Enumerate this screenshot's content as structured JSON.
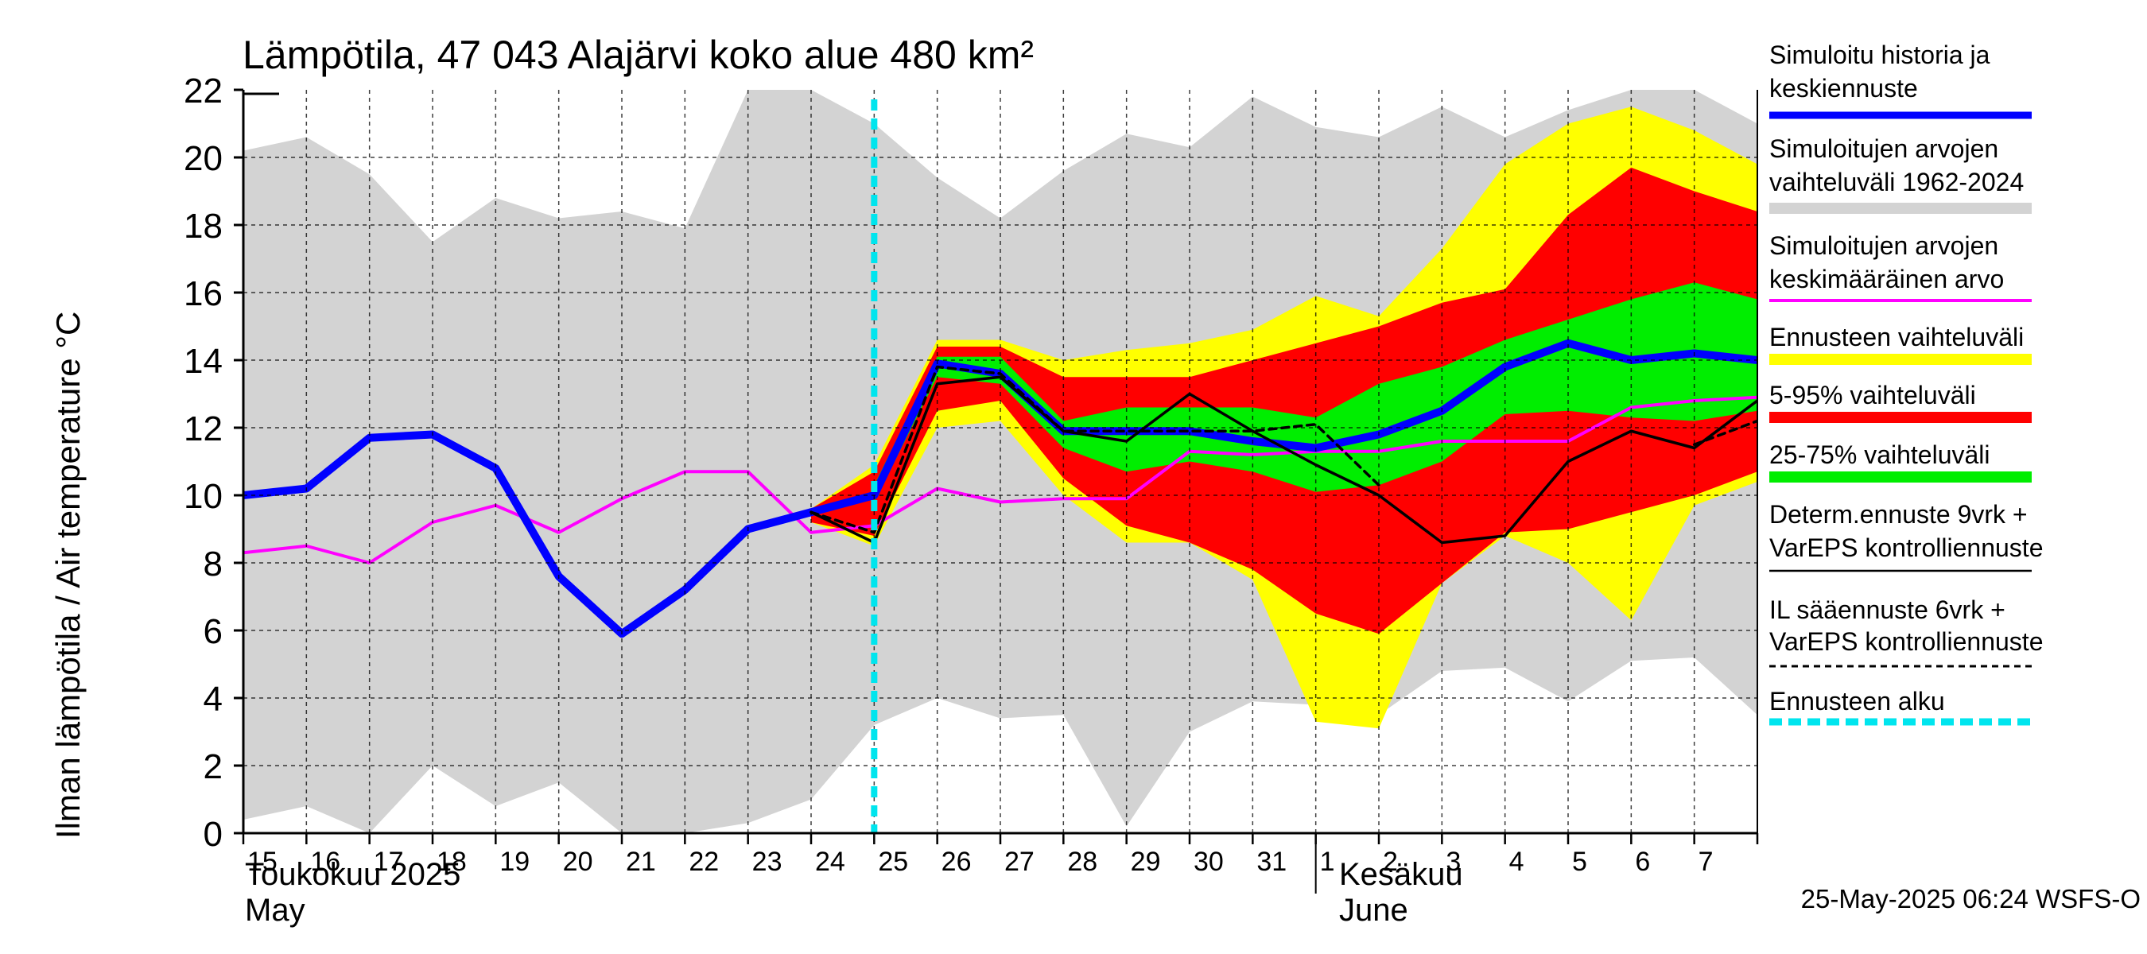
{
  "chart_data": {
    "type": "area",
    "title": "Lämpötila, 47 043 Alajärvi koko alue 480 km²",
    "ylabel": "Ilman lämpötila / Air temperature   °C",
    "ylim": [
      0,
      22
    ],
    "yticks": [
      0,
      2,
      4,
      6,
      8,
      10,
      12,
      14,
      16,
      18,
      20,
      22
    ],
    "xlim": [
      0,
      24
    ],
    "day_labels": [
      "15",
      "16",
      "17",
      "18",
      "19",
      "20",
      "21",
      "22",
      "23",
      "24",
      "25",
      "26",
      "27",
      "28",
      "29",
      "30",
      "31",
      "1",
      "2",
      "3",
      "4",
      "5",
      "6",
      "7"
    ],
    "month_labels": [
      {
        "line1": "Toukokuu  2025",
        "line2": "May"
      },
      {
        "line1": "Kesäkuu",
        "line2": "June"
      }
    ],
    "forecast_start": 10,
    "series": [
      {
        "name": "Simuloitujen arvojen vaihteluväli 1962-2024",
        "color": "#d3d3d3",
        "x": [
          0,
          1,
          2,
          3,
          4,
          5,
          6,
          7,
          8,
          9,
          10,
          11,
          12,
          13,
          14,
          15,
          16,
          17,
          18,
          19,
          20,
          21,
          22,
          23,
          24
        ],
        "lower": [
          0.4,
          0.8,
          0.0,
          2.0,
          0.8,
          1.5,
          0.0,
          0.0,
          0.3,
          1.0,
          3.2,
          4.0,
          3.4,
          3.5,
          0.2,
          3.0,
          3.9,
          3.8,
          3.5,
          4.8,
          4.9,
          3.9,
          5.1,
          5.2,
          3.5
        ],
        "upper": [
          20.2,
          20.6,
          19.5,
          17.5,
          18.8,
          18.2,
          18.4,
          17.9,
          22.0,
          22.0,
          21.0,
          19.4,
          18.2,
          19.6,
          20.7,
          20.3,
          21.8,
          20.9,
          20.6,
          21.5,
          20.6,
          21.4,
          22.0,
          22.0,
          21.0
        ]
      },
      {
        "name": "Ennusteen vaihteluväli",
        "color": "#ffff00",
        "x": [
          9,
          10,
          11,
          12,
          13,
          14,
          15,
          16,
          17,
          18,
          19,
          20,
          21,
          22,
          23,
          24
        ],
        "lower": [
          9.2,
          8.5,
          12.0,
          12.2,
          10.0,
          8.6,
          8.6,
          7.5,
          3.3,
          3.1,
          7.4,
          8.8,
          8.0,
          6.3,
          9.7,
          10.4
        ],
        "upper": [
          9.6,
          10.9,
          14.6,
          14.6,
          14.0,
          14.3,
          14.5,
          14.9,
          15.9,
          15.3,
          17.3,
          19.8,
          21.0,
          21.5,
          20.8,
          19.8
        ]
      },
      {
        "name": "5-95% vaihteluväli",
        "color": "#ff0000",
        "x": [
          9,
          10,
          11,
          12,
          13,
          14,
          15,
          16,
          17,
          18,
          19,
          20,
          21,
          22,
          23,
          24
        ],
        "lower": [
          9.2,
          8.8,
          12.5,
          12.8,
          10.5,
          9.1,
          8.6,
          7.8,
          6.5,
          5.9,
          7.4,
          8.9,
          9.0,
          9.5,
          10.0,
          10.7
        ],
        "upper": [
          9.6,
          10.7,
          14.4,
          14.4,
          13.5,
          13.5,
          13.5,
          14.0,
          14.5,
          15.0,
          15.7,
          16.1,
          18.3,
          19.7,
          19.0,
          18.4
        ]
      },
      {
        "name": "25-75% vaihteluväli",
        "color": "#00ee00",
        "x": [
          10,
          11,
          12,
          13,
          14,
          15,
          16,
          17,
          18,
          19,
          20,
          21,
          22,
          23,
          24
        ],
        "lower": [
          9.8,
          13.5,
          13.3,
          11.4,
          10.7,
          11.0,
          10.7,
          10.1,
          10.3,
          11.0,
          12.4,
          12.5,
          12.3,
          12.2,
          12.5
        ],
        "upper": [
          10.3,
          14.1,
          14.1,
          12.2,
          12.6,
          12.6,
          12.6,
          12.3,
          13.3,
          13.8,
          14.6,
          15.2,
          15.8,
          16.3,
          15.8
        ]
      },
      {
        "name": "Simuloitujen arvojen keskimääräinen arvo",
        "color": "#ff00ff",
        "x": [
          0,
          1,
          2,
          3,
          4,
          5,
          6,
          7,
          8,
          9,
          10,
          11,
          12,
          13,
          14,
          15,
          16,
          17,
          18,
          19,
          20,
          21,
          22,
          23,
          24
        ],
        "y": [
          8.3,
          8.5,
          8.0,
          9.2,
          9.7,
          8.9,
          9.9,
          10.7,
          10.7,
          8.9,
          9.1,
          10.2,
          9.8,
          9.9,
          9.9,
          11.3,
          11.2,
          11.3,
          11.3,
          11.6,
          11.6,
          11.6,
          12.6,
          12.8,
          12.9
        ]
      },
      {
        "name": "Simuloitu historia ja keskiennuste",
        "color": "#0000ff",
        "x": [
          0,
          1,
          2,
          3,
          4,
          5,
          6,
          7,
          8,
          9,
          10,
          11,
          12,
          13,
          14,
          15,
          16,
          17,
          18,
          19,
          20,
          21,
          22,
          23,
          24
        ],
        "y": [
          10.0,
          10.2,
          11.7,
          11.8,
          10.8,
          7.6,
          5.9,
          7.2,
          9.0,
          9.5,
          10.0,
          13.9,
          13.6,
          11.9,
          11.9,
          11.9,
          11.6,
          11.4,
          11.8,
          12.5,
          13.8,
          14.5,
          14.0,
          14.2,
          14.0
        ]
      },
      {
        "name": "Determ.ennuste 9vrk + VarEPS kontrolliennuste",
        "color": "#000000",
        "x": [
          9,
          10,
          11,
          12,
          13,
          14,
          15,
          16,
          17,
          18,
          19,
          20,
          21,
          22,
          23,
          24
        ],
        "y": [
          9.5,
          8.6,
          13.3,
          13.5,
          11.9,
          11.6,
          13.0,
          11.9,
          10.9,
          10.0,
          8.6,
          8.8,
          11.0,
          11.9,
          11.4,
          12.8
        ]
      },
      {
        "name": "IL sääennuste 6vrk + VarEPS kontrolliennuste",
        "color": "#000000",
        "x": [
          9,
          10,
          11,
          12,
          13,
          14,
          15,
          16,
          17,
          18,
          19,
          20,
          21,
          22,
          23,
          24
        ],
        "y": [
          9.5,
          8.9,
          13.8,
          13.6,
          11.9,
          11.9,
          11.9,
          11.9,
          12.1,
          10.3,
          null,
          null,
          null,
          null,
          11.5,
          12.2
        ]
      }
    ]
  },
  "legend": [
    {
      "text": "Simuloitu historia ja\nkeskiennuste",
      "color": "#0000ff",
      "style": "solid-thick"
    },
    {
      "text": "Simuloitujen arvojen\nvaihteluväli 1962-2024",
      "color": "#d3d3d3",
      "style": "band"
    },
    {
      "text": "Simuloitujen arvojen\nkeskimääräinen arvo",
      "color": "#ff00ff",
      "style": "solid"
    },
    {
      "text": "Ennusteen vaihteluväli",
      "color": "#ffff00",
      "style": "band"
    },
    {
      "text": "5-95% vaihteluväli",
      "color": "#ff0000",
      "style": "band"
    },
    {
      "text": "25-75% vaihteluväli",
      "color": "#00ee00",
      "style": "band"
    },
    {
      "text": "Determ.ennuste 9vrk +\nVarEPS kontrolliennuste",
      "color": "#000000",
      "style": "thin"
    },
    {
      "text": "IL sääennuste 6vrk  +\n  VarEPS kontrolliennuste",
      "color": "#000000",
      "style": "dashed"
    },
    {
      "text": "Ennusteen alku",
      "color": "#00e5ee",
      "style": "dashed-thick"
    }
  ],
  "footer": "25-May-2025 06:24 WSFS-O"
}
